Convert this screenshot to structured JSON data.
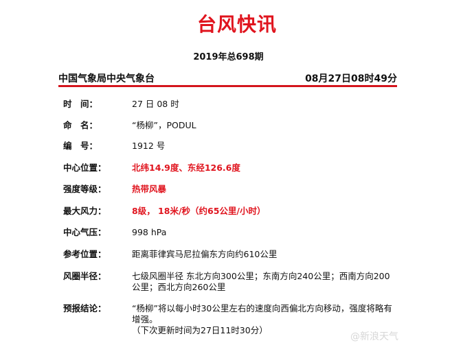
{
  "title": "台风快讯",
  "issue": "2019年总698期",
  "header": {
    "agency": "中国气象局中央气象台",
    "datetime": "08月27日08时49分"
  },
  "rows": [
    {
      "label": "时　间：",
      "value": "27 日 08 时",
      "highlight": false
    },
    {
      "label": "命　名：",
      "value": "“杨柳”，PODUL",
      "highlight": false
    },
    {
      "label": "编　号：",
      "value": "1912 号",
      "highlight": false
    },
    {
      "label": "中心位置：",
      "value": "北纬14.9度、东经126.6度",
      "highlight": true
    },
    {
      "label": "强度等级：",
      "value": "热带风暴",
      "highlight": true
    },
    {
      "label": "最大风力：",
      "value": "8级， 18米/秒（约65公里/小时）",
      "highlight": true
    },
    {
      "label": "中心气压：",
      "value": "998 hPa",
      "highlight": false
    },
    {
      "label": "参考位置：",
      "value": "距离菲律宾马尼拉偏东方向约610公里",
      "highlight": false
    },
    {
      "label": "风圈半径：",
      "value": "七级风圈半径 东北方向300公里；东南方向240公里；西南方向200公里；西北方向260公里",
      "highlight": false
    },
    {
      "label": "预报结论：",
      "value": "“杨柳”将以每小时30公里左右的速度向西偏北方向移动，强度将略有增强。",
      "note": "（下次更新时间为27日11时30分）",
      "highlight": false
    }
  ],
  "watermark": "@新浪天气",
  "colors": {
    "accent": "#e0141e"
  }
}
